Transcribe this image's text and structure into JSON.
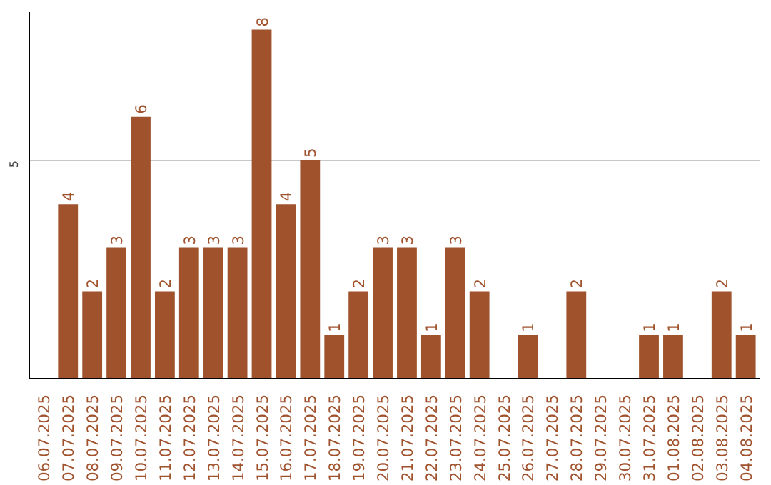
{
  "chart_data": {
    "type": "bar",
    "categories": [
      "06.07.2025",
      "07.07.2025",
      "08.07.2025",
      "09.07.2025",
      "10.07.2025",
      "11.07.2025",
      "12.07.2025",
      "13.07.2025",
      "14.07.2025",
      "15.07.2025",
      "16.07.2025",
      "17.07.2025",
      "18.07.2025",
      "19.07.2025",
      "20.07.2025",
      "21.07.2025",
      "22.07.2025",
      "23.07.2025",
      "24.07.2025",
      "25.07.2025",
      "26.07.2025",
      "27.07.2025",
      "28.07.2025",
      "29.07.2025",
      "30.07.2025",
      "31.07.2025",
      "01.08.2025",
      "02.08.2025",
      "03.08.2025",
      "04.08.2025"
    ],
    "values": [
      0,
      4,
      2,
      3,
      6,
      2,
      3,
      3,
      3,
      8,
      4,
      5,
      1,
      2,
      3,
      3,
      1,
      3,
      2,
      0,
      1,
      0,
      2,
      0,
      0,
      1,
      1,
      0,
      2,
      1
    ],
    "value_labels": [
      null,
      "4",
      "2",
      "3",
      "6",
      "2",
      "3",
      "3",
      "3",
      "8",
      "4",
      "5",
      "1",
      "2",
      "3",
      "3",
      "1",
      "3",
      "2",
      null,
      "1",
      null,
      "2",
      null,
      null,
      "1",
      "1",
      null,
      "2",
      "1"
    ],
    "color": "#a0522d",
    "ylim": [
      0,
      8.4
    ],
    "yticks": [
      5
    ],
    "grid": "y"
  }
}
